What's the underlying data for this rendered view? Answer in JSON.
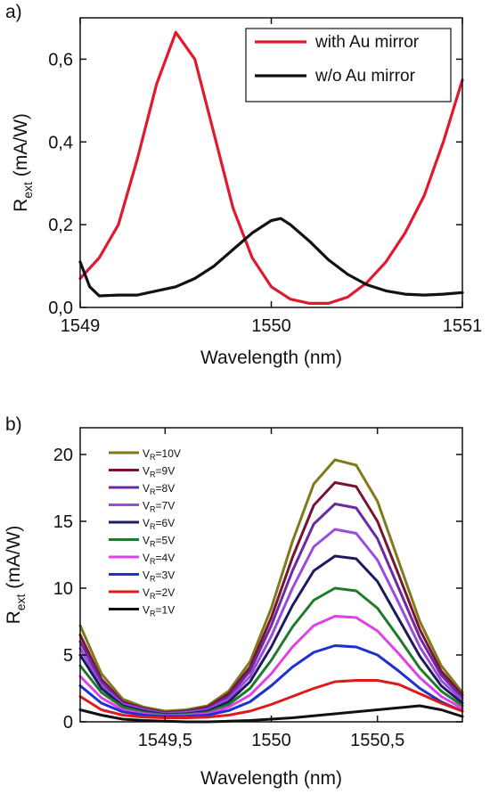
{
  "chart_data": [
    {
      "panel_label": "a)",
      "type": "line",
      "xlabel": "Wavelength (nm)",
      "ylabel_main": "R",
      "ylabel_sub": "ext",
      "ylabel_unit": " (mA/W)",
      "xlim": [
        1549,
        1551
      ],
      "ylim": [
        0,
        0.7
      ],
      "xticks": [
        1549,
        1550,
        1551
      ],
      "xtick_labels": [
        "1549",
        "1550",
        "1551"
      ],
      "yticks": [
        0,
        0.2,
        0.4,
        0.6
      ],
      "ytick_labels": [
        "0,0",
        "0,2",
        "0,4",
        "0,6"
      ],
      "legend_position": "top-right",
      "series": [
        {
          "name": "with Au mirror",
          "color": "#e0192e",
          "x": [
            1549.0,
            1549.1,
            1549.2,
            1549.3,
            1549.4,
            1549.5,
            1549.6,
            1549.7,
            1549.8,
            1549.9,
            1550.0,
            1550.1,
            1550.2,
            1550.3,
            1550.4,
            1550.5,
            1550.6,
            1550.7,
            1550.8,
            1550.9,
            1551.0
          ],
          "y": [
            0.07,
            0.12,
            0.2,
            0.36,
            0.54,
            0.665,
            0.6,
            0.42,
            0.24,
            0.12,
            0.05,
            0.02,
            0.01,
            0.01,
            0.025,
            0.06,
            0.11,
            0.18,
            0.27,
            0.4,
            0.55
          ]
        },
        {
          "name": "w/o Au mirror",
          "color": "#111111",
          "x": [
            1549.0,
            1549.05,
            1549.1,
            1549.2,
            1549.3,
            1549.4,
            1549.5,
            1549.6,
            1549.7,
            1549.8,
            1549.9,
            1550.0,
            1550.05,
            1550.1,
            1550.2,
            1550.3,
            1550.4,
            1550.5,
            1550.6,
            1550.7,
            1550.8,
            1550.9,
            1551.0
          ],
          "y": [
            0.11,
            0.05,
            0.028,
            0.03,
            0.03,
            0.04,
            0.05,
            0.07,
            0.1,
            0.14,
            0.18,
            0.21,
            0.215,
            0.2,
            0.16,
            0.115,
            0.08,
            0.055,
            0.04,
            0.032,
            0.03,
            0.032,
            0.036
          ]
        }
      ]
    },
    {
      "panel_label": "b)",
      "type": "line",
      "xlabel": "Wavelength (nm)",
      "ylabel_main": "R",
      "ylabel_sub": "ext",
      "ylabel_unit": " (mA/W)",
      "xlim": [
        1549.1,
        1550.9
      ],
      "ylim": [
        0,
        22
      ],
      "xticks": [
        1549.5,
        1550,
        1550.5
      ],
      "xtick_labels": [
        "1549,5",
        "1550",
        "1550,5"
      ],
      "yticks": [
        0,
        5,
        10,
        15,
        20
      ],
      "ytick_labels": [
        "0",
        "5",
        "10",
        "15",
        "20"
      ],
      "legend_position": "top-left",
      "x": [
        1549.1,
        1549.2,
        1549.3,
        1549.4,
        1549.5,
        1549.6,
        1549.7,
        1549.8,
        1549.9,
        1550.0,
        1550.1,
        1550.2,
        1550.3,
        1550.4,
        1550.5,
        1550.6,
        1550.7,
        1550.8,
        1550.9
      ],
      "series": [
        {
          "name": "V",
          "sub": "R",
          "suffix": "=10V",
          "color": "#7f7a1a",
          "y": [
            7.2,
            3.6,
            1.7,
            1.1,
            0.8,
            0.9,
            1.2,
            2.3,
            4.5,
            8.5,
            13.5,
            17.8,
            19.6,
            19.2,
            16.5,
            12.0,
            7.5,
            4.2,
            2.2
          ]
        },
        {
          "name": "V",
          "sub": "R",
          "suffix": "=9V",
          "color": "#7a1232",
          "y": [
            6.5,
            3.2,
            1.5,
            1.0,
            0.7,
            0.8,
            1.1,
            2.1,
            4.1,
            7.8,
            12.3,
            16.2,
            17.9,
            17.6,
            15.0,
            11.0,
            6.9,
            3.8,
            2.0
          ]
        },
        {
          "name": "V",
          "sub": "R",
          "suffix": "=8V",
          "color": "#6b2aa0",
          "y": [
            6.0,
            3.0,
            1.4,
            0.95,
            0.65,
            0.75,
            1.0,
            1.9,
            3.8,
            7.2,
            11.3,
            14.8,
            16.3,
            16.0,
            13.7,
            10.0,
            6.3,
            3.5,
            1.8
          ]
        },
        {
          "name": "V",
          "sub": "R",
          "suffix": "=7V",
          "color": "#9a4ce0",
          "y": [
            5.5,
            2.7,
            1.3,
            0.9,
            0.6,
            0.7,
            0.9,
            1.7,
            3.4,
            6.4,
            10.0,
            13.1,
            14.4,
            14.1,
            12.1,
            8.9,
            5.6,
            3.1,
            1.6
          ]
        },
        {
          "name": "V",
          "sub": "R",
          "suffix": "=6V",
          "color": "#1e1a5e",
          "y": [
            5.0,
            2.5,
            1.2,
            0.8,
            0.55,
            0.6,
            0.8,
            1.5,
            3.0,
            5.6,
            8.7,
            11.3,
            12.4,
            12.2,
            10.5,
            7.7,
            4.9,
            2.7,
            1.4
          ]
        },
        {
          "name": "V",
          "sub": "R",
          "suffix": "=5V",
          "color": "#1e7a2c",
          "y": [
            4.2,
            2.2,
            1.1,
            0.7,
            0.5,
            0.55,
            0.7,
            1.3,
            2.5,
            4.6,
            7.1,
            9.1,
            10.0,
            9.8,
            8.5,
            6.3,
            4.0,
            2.3,
            1.2
          ]
        },
        {
          "name": "V",
          "sub": "R",
          "suffix": "=4V",
          "color": "#e040e8",
          "y": [
            3.4,
            1.8,
            0.9,
            0.6,
            0.45,
            0.5,
            0.6,
            1.1,
            2.0,
            3.6,
            5.6,
            7.2,
            7.9,
            7.8,
            6.8,
            5.1,
            3.3,
            1.9,
            1.0
          ]
        },
        {
          "name": "V",
          "sub": "R",
          "suffix": "=3V",
          "color": "#2030d0",
          "y": [
            2.7,
            1.4,
            0.75,
            0.5,
            0.4,
            0.42,
            0.5,
            0.85,
            1.5,
            2.7,
            4.1,
            5.2,
            5.7,
            5.6,
            5.0,
            3.8,
            2.5,
            1.5,
            0.8
          ]
        },
        {
          "name": "V",
          "sub": "R",
          "suffix": "=2V",
          "color": "#e01a1a",
          "y": [
            1.9,
            0.9,
            0.5,
            0.35,
            0.3,
            0.3,
            0.35,
            0.5,
            0.8,
            1.3,
            1.9,
            2.5,
            3.0,
            3.1,
            3.1,
            2.8,
            2.1,
            1.4,
            0.8
          ]
        },
        {
          "name": "V",
          "sub": "R",
          "suffix": "=1V",
          "color": "#111111",
          "y": [
            0.9,
            0.5,
            0.2,
            0.1,
            0.05,
            0.0,
            0.0,
            0.05,
            0.1,
            0.2,
            0.3,
            0.45,
            0.6,
            0.75,
            0.9,
            1.05,
            1.2,
            0.9,
            0.4
          ]
        }
      ]
    }
  ]
}
